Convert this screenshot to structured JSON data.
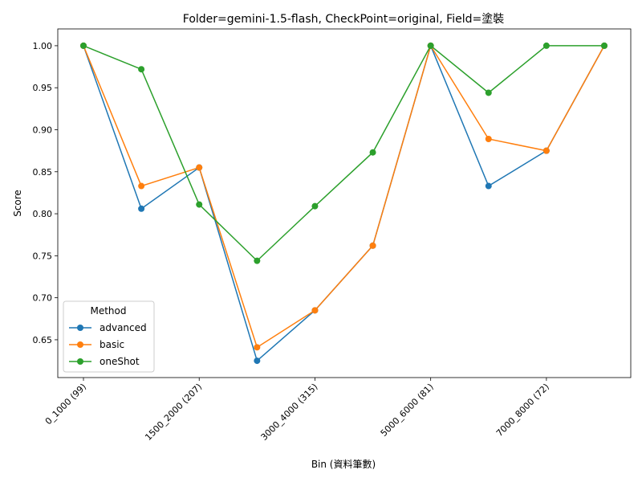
{
  "chart_data": {
    "type": "line",
    "title": "Folder=gemini-1.5-flash, CheckPoint=original, Field=塗裝",
    "xlabel": "Bin (資料筆數)",
    "ylabel": "Score",
    "ylim": [
      0.605,
      1.02
    ],
    "yticks": [
      "0.65",
      "0.70",
      "0.75",
      "0.80",
      "0.85",
      "0.90",
      "0.95",
      "1.00"
    ],
    "ytick_values": [
      0.65,
      0.7,
      0.75,
      0.8,
      0.85,
      0.9,
      0.95,
      1.0
    ],
    "x": [
      0,
      1,
      2,
      3,
      4,
      5,
      6,
      7,
      8,
      9
    ],
    "xticks": [
      {
        "index": 0,
        "label": "0_1000 (99)"
      },
      {
        "index": 2,
        "label": "1500_2000 (207)"
      },
      {
        "index": 4,
        "label": "3000_4000 (315)"
      },
      {
        "index": 6,
        "label": "5000_6000 (81)"
      },
      {
        "index": 8,
        "label": "7000_8000 (72)"
      }
    ],
    "grid": false,
    "legend": {
      "title": "Method",
      "placement": "lower-left"
    },
    "series": [
      {
        "name": "advanced",
        "color": "#1f77b4",
        "values": [
          1.0,
          0.806,
          0.855,
          0.625,
          0.685,
          0.762,
          1.0,
          0.833,
          0.875,
          1.0
        ]
      },
      {
        "name": "basic",
        "color": "#ff7f0e",
        "values": [
          1.0,
          0.833,
          0.855,
          0.641,
          0.685,
          0.762,
          1.0,
          0.889,
          0.875,
          1.0
        ]
      },
      {
        "name": "oneShot",
        "color": "#2ca02c",
        "values": [
          1.0,
          0.972,
          0.811,
          0.744,
          0.809,
          0.873,
          1.0,
          0.944,
          1.0,
          1.0
        ]
      }
    ]
  }
}
